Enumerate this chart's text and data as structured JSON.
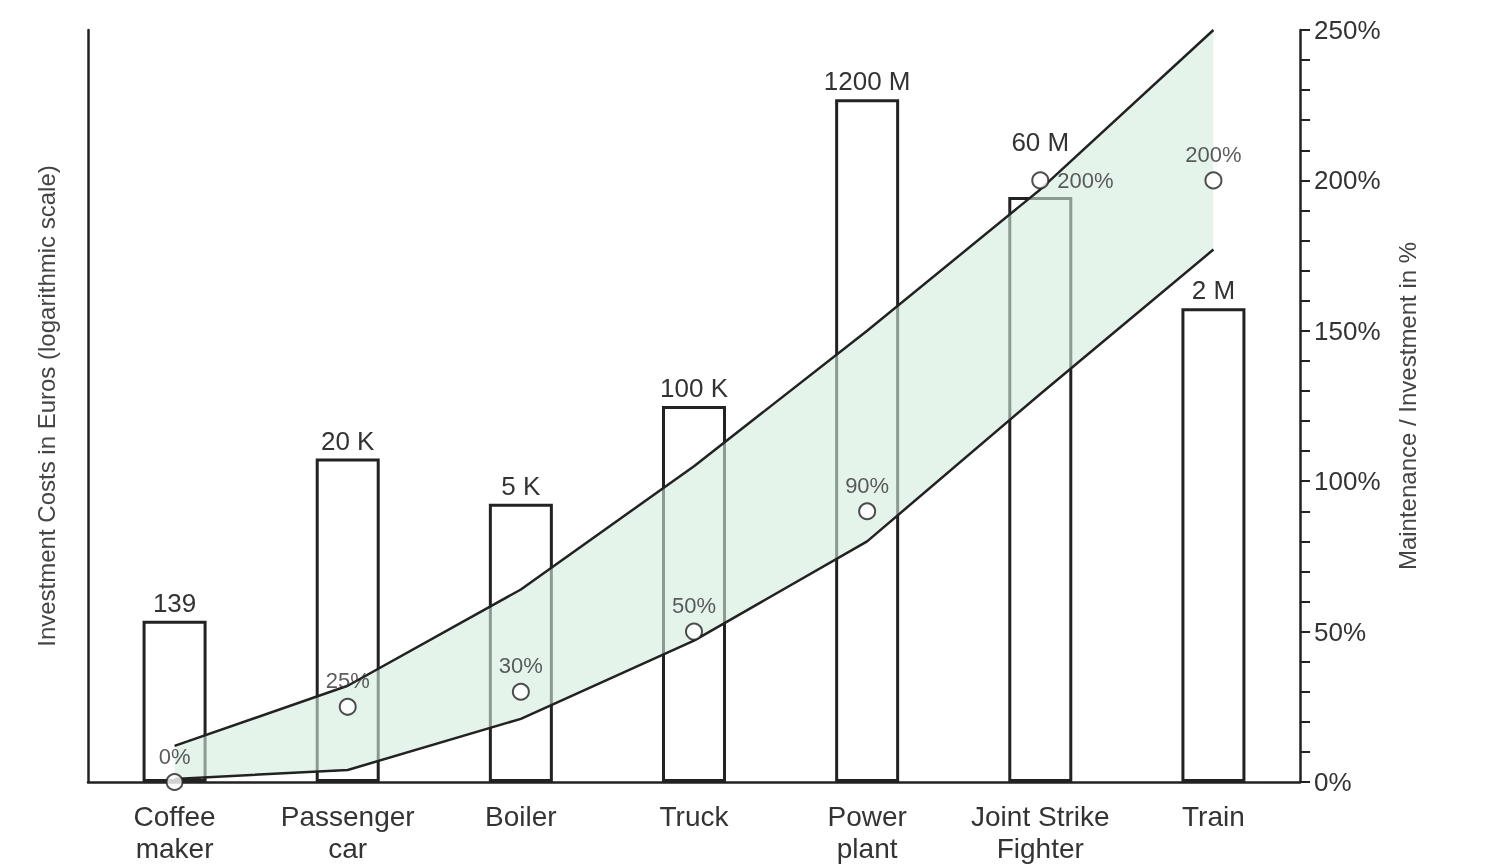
{
  "chart_data": {
    "type": "bar",
    "xlabel": null,
    "ylabel": "Investment Costs in Euros (logarithmic scale)",
    "y2label": "Maintenance / Investment in %",
    "categories": [
      [
        "Coffee",
        "maker"
      ],
      [
        "Passenger",
        "car"
      ],
      [
        "Boiler"
      ],
      [
        "Truck"
      ],
      [
        "Power",
        "plant"
      ],
      [
        "Joint Strike",
        "Fighter"
      ],
      [
        "Train"
      ]
    ],
    "log": "y",
    "ylim": [
      1,
      10000000000
    ],
    "y2lim": [
      0,
      250
    ],
    "y2ticks": [
      {
        "value": 0,
        "label": "0%"
      },
      {
        "value": 10,
        "label": null
      },
      {
        "value": 20,
        "label": null
      },
      {
        "value": 30,
        "label": null
      },
      {
        "value": 40,
        "label": null
      },
      {
        "value": 50,
        "label": "50%"
      },
      {
        "value": 60,
        "label": null
      },
      {
        "value": 70,
        "label": null
      },
      {
        "value": 80,
        "label": null
      },
      {
        "value": 90,
        "label": null
      },
      {
        "value": 100,
        "label": "100%"
      },
      {
        "value": 110,
        "label": null
      },
      {
        "value": 120,
        "label": null
      },
      {
        "value": 130,
        "label": null
      },
      {
        "value": 140,
        "label": null
      },
      {
        "value": 150,
        "label": "150%"
      },
      {
        "value": 160,
        "label": null
      },
      {
        "value": 170,
        "label": null
      },
      {
        "value": 180,
        "label": null
      },
      {
        "value": 190,
        "label": null
      },
      {
        "value": 200,
        "label": "200%"
      },
      {
        "value": 210,
        "label": null
      },
      {
        "value": 220,
        "label": null
      },
      {
        "value": 230,
        "label": null
      },
      {
        "value": 240,
        "label": null
      },
      {
        "value": 250,
        "label": "250%"
      }
    ],
    "series": [
      {
        "type": "line",
        "axis": "y2",
        "color": "#222222",
        "values": [
          12,
          32,
          64,
          105,
          150,
          197,
          250
        ],
        "lower": [
          1,
          4,
          21,
          47,
          80,
          129,
          177
        ],
        "upper": [
          12,
          32,
          64,
          105,
          150,
          197,
          250
        ]
      },
      {
        "color": "#ffffff",
        "values": [
          139,
          20000,
          5000,
          100000,
          1200000000,
          60000000,
          2000000
        ],
        "value_labels": [
          "139",
          "20 K",
          "5 K",
          "100 K",
          "1200 M",
          "60 M",
          "2 M"
        ]
      },
      {
        "type": "scatter",
        "axis": "y2",
        "color": "#222222",
        "marker": "circle",
        "values": [
          0,
          25,
          30,
          50,
          90,
          200,
          200
        ],
        "value_labels": [
          "0%",
          "25%",
          "30%",
          "50%",
          "90%",
          "200%",
          "200%"
        ]
      }
    ]
  }
}
